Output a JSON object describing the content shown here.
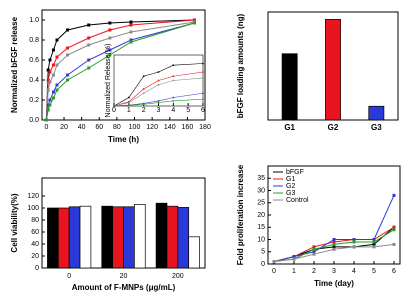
{
  "chart_data": [
    {
      "type": "line",
      "xlabel": "Time (h)",
      "ylabel": "Normalized bFGF release",
      "x": [
        0,
        2,
        4,
        8,
        12,
        24,
        48,
        72,
        96,
        168
      ],
      "xlim": [
        -5,
        180
      ],
      "xticks": [
        0,
        20,
        40,
        60,
        80,
        100,
        120,
        140,
        160,
        180
      ],
      "ylim": [
        0,
        1.1
      ],
      "yticks": [
        {
          "value": 0,
          "label": "0.0"
        },
        0.2,
        0.4,
        0.6,
        0.8,
        {
          "value": 1,
          "label": "1.0"
        }
      ],
      "series": [
        {
          "color": "#000000",
          "values": [
            0,
            0.5,
            0.6,
            0.7,
            0.8,
            0.9,
            0.95,
            0.97,
            0.98,
            1.0
          ]
        },
        {
          "color": "#e8141e",
          "values": [
            0,
            0.4,
            0.48,
            0.55,
            0.63,
            0.72,
            0.82,
            0.9,
            0.95,
            1.0
          ]
        },
        {
          "color": "#8a8a8a",
          "values": [
            0,
            0.3,
            0.38,
            0.45,
            0.55,
            0.65,
            0.75,
            0.82,
            0.88,
            0.98
          ]
        },
        {
          "color": "#3a3acc",
          "values": [
            0,
            0.15,
            0.2,
            0.28,
            0.35,
            0.45,
            0.6,
            0.7,
            0.8,
            0.97
          ]
        },
        {
          "color": "#22a022",
          "values": [
            0,
            0.1,
            0.15,
            0.22,
            0.3,
            0.4,
            0.52,
            0.65,
            0.78,
            0.97
          ]
        }
      ]
    },
    {
      "type": "line",
      "ylabel": "Normalized Release(%)",
      "x": [
        0,
        1,
        2,
        3,
        4,
        6
      ],
      "xlim": [
        0,
        6
      ],
      "xticks": [
        0,
        1,
        2,
        3,
        4,
        5,
        6
      ],
      "ylim": [
        0,
        0.6
      ],
      "series": [
        {
          "color": "#000000",
          "values": [
            0,
            0.1,
            0.35,
            0.4,
            0.48,
            0.5
          ]
        },
        {
          "color": "#e8141e",
          "values": [
            0,
            0.05,
            0.2,
            0.3,
            0.35,
            0.4
          ]
        },
        {
          "color": "#8a8a8a",
          "values": [
            0,
            0.04,
            0.15,
            0.25,
            0.3,
            0.33
          ]
        },
        {
          "color": "#3a3acc",
          "values": [
            0,
            0.01,
            0.03,
            0.06,
            0.1,
            0.15
          ]
        },
        {
          "color": "#22a022",
          "values": [
            0,
            0.01,
            0.02,
            0.04,
            0.06,
            0.08
          ]
        }
      ]
    },
    {
      "type": "bar",
      "ylabel": "bFGF loading amounts (ng)",
      "categories": [
        "G1",
        "G2",
        "G3"
      ],
      "values": [
        13.5,
        20.5,
        2.8
      ],
      "colors": [
        "#000000",
        "#e8141e",
        "#2a3ad8"
      ],
      "ylim": [
        0,
        22
      ]
    },
    {
      "type": "bar",
      "xlabel": "Amount of F-MNPs (μg/mL)",
      "ylabel": "Cell viability(%)",
      "categories": [
        "0",
        "20",
        "200"
      ],
      "ylim": [
        0,
        150
      ],
      "yticks": [
        0,
        20,
        40,
        60,
        80,
        100,
        120
      ],
      "series": [
        {
          "color": "#000000",
          "values": [
            100,
            103,
            108
          ]
        },
        {
          "color": "#e8141e",
          "values": [
            100,
            102,
            103
          ]
        },
        {
          "color": "#2a3ad8",
          "values": [
            102,
            102,
            101
          ]
        },
        {
          "color": "#ffffff",
          "values": [
            103,
            106,
            52
          ]
        }
      ]
    },
    {
      "type": "line",
      "xlabel": "Time (day)",
      "ylabel": "Fold proliferation increase",
      "x": [
        0,
        1,
        2,
        3,
        4,
        5,
        6
      ],
      "xlim": [
        -0.3,
        6.3
      ],
      "xticks": [
        0,
        1,
        2,
        3,
        4,
        5,
        6
      ],
      "ylim": [
        0,
        40
      ],
      "yticks": [
        0,
        5,
        10,
        15,
        20,
        25,
        30,
        35
      ],
      "legend": "upper left",
      "series": [
        {
          "name": "bFGF",
          "color": "#000000",
          "values": [
            1,
            3,
            6,
            7,
            7,
            8,
            15
          ]
        },
        {
          "name": "G1",
          "color": "#e8141e",
          "values": [
            1,
            3,
            7,
            9,
            10,
            10,
            15
          ]
        },
        {
          "name": "G2",
          "color": "#2a3ad8",
          "values": [
            1,
            3,
            5,
            10,
            10,
            10,
            28
          ]
        },
        {
          "name": "G3",
          "color": "#22a022",
          "values": [
            1,
            2,
            6,
            8,
            9,
            9,
            14
          ]
        },
        {
          "name": "Control",
          "color": "#8a8a8a",
          "values": [
            1,
            2,
            4,
            6,
            7,
            7,
            8
          ]
        }
      ]
    }
  ]
}
